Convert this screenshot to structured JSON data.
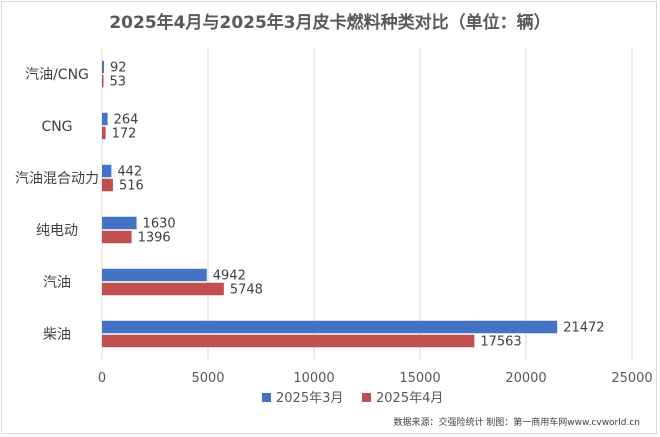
{
  "chart_data": {
    "type": "bar",
    "orientation": "horizontal",
    "title": "2025年4月与2025年3月皮卡燃料种类对比（单位：辆）",
    "categories": [
      "汽油/CNG",
      "CNG",
      "汽油混合动力",
      "纯电动",
      "汽油",
      "柴油"
    ],
    "series": [
      {
        "name": "2025年3月",
        "color": "#4472c4",
        "values": [
          92,
          264,
          442,
          1630,
          4942,
          21472
        ]
      },
      {
        "name": "2025年4月",
        "color": "#c0504d",
        "values": [
          53,
          172,
          516,
          1396,
          5748,
          17563
        ]
      }
    ],
    "xlim": [
      0,
      25000
    ],
    "xticks": [
      0,
      5000,
      10000,
      15000,
      20000,
      25000
    ],
    "grid": true,
    "legend": "bottom",
    "source_note": "数据来源：交强险统计 制图：第一商用车网www.cvworld.cn"
  }
}
